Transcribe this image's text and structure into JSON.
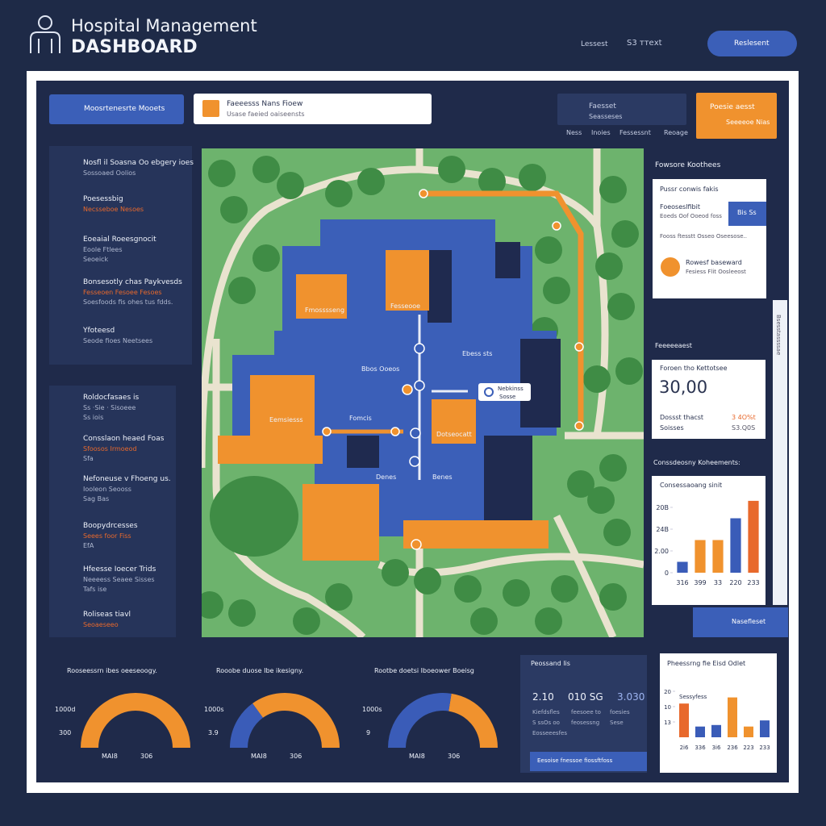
{
  "header": {
    "title": "Hospital Management",
    "subtitle": "DASHBOARD",
    "links": [
      "Lessest",
      "S3 ттеxt"
    ],
    "button": "Reslesent"
  },
  "toolbar": {
    "search": "Moosrtenesrte Mooets",
    "dropdown": {
      "title": "Faeeesss Nans Fioew",
      "sub": "Usase faeied oaiseensts"
    },
    "card": {
      "title": "Faesset",
      "sub": "Seasseses"
    },
    "tabs": [
      "Ness",
      "Inoies",
      "Fessessnt",
      "Reoage"
    ],
    "alert": {
      "title": "Poesie aesst",
      "sub": "Seeeeoe Nias"
    }
  },
  "left_top": [
    {
      "title": "Nosfl il Soasna Oo ebgery ioes",
      "lines": [
        "Sossoaed Oolios"
      ]
    },
    {
      "title": "Poesessbig",
      "lines": [
        "Necsseboe  Nesoes"
      ]
    },
    {
      "title": "Eoeaial Roeesgnocit",
      "lines": [
        "Eoole Ftlees",
        "Seoeick"
      ]
    },
    {
      "title": "Bonsesotly chas Paykvesds",
      "lines": [
        "Fesseoen Fesoee  Fesoes",
        "Soesfoods fis ohes  tus fdds."
      ]
    },
    {
      "title": "Yfoteesd",
      "lines": [
        "Seode fioes  Neetsees"
      ]
    }
  ],
  "left_bottom": [
    {
      "title": "Roldocfasaes is",
      "lines": [
        "Ss ·Sie · Sisoeee",
        "Ss iois"
      ]
    },
    {
      "title": "Consslaon heaed Foas",
      "lines": [
        "Sfoosos Irmoeod",
        "Sfa"
      ]
    },
    {
      "title": "Nefoneuse v Fhoeng us.",
      "lines": [
        "Iooleon Seooss",
        "Sag Bas"
      ]
    },
    {
      "title": "Boopydrcesses",
      "lines": [
        "Seees foor Fiss",
        "EfA"
      ]
    },
    {
      "title": "Hfeesse Ioecer Trids",
      "lines": [
        "Neeeess Seaee Sisses",
        "Tafs ise"
      ]
    },
    {
      "title": "Roliseas tiavl",
      "lines": [
        "Seoaeseeo"
      ]
    }
  ],
  "map": {
    "labels": [
      "Fmosssseng",
      "Fesseooe",
      "Bbos Ooeos",
      "Ebess sts",
      "Eemsiesss",
      "Fomcis",
      "Dotseocatt",
      "Denes",
      "Benes"
    ],
    "popup": {
      "title": "Nebkinss",
      "sub": "Sosse"
    }
  },
  "right_top": {
    "title": "Fowsore Koothees",
    "card_title": "Pussr conwis fakis",
    "row_title": "Foeoseslfibit",
    "row_sub": "Eoeds Oof Ooeod foss",
    "row_button": "Bis  Ss",
    "line": "Fooss ftesstt Osseo Oseesose..",
    "item_title": "Rowesf baseward",
    "item_sub": "Fesiess Flit Oosleeost"
  },
  "right_mid": {
    "title": "Feeeeeaest",
    "card_title": "Foroen tho Kettotsee",
    "big": "30,00",
    "rows": [
      [
        "Dossst thacst",
        "3 4O%t"
      ],
      [
        "Soisses",
        "S3.Q0S"
      ]
    ],
    "section": "Conssdeosny Koheements:",
    "button": "Nasefleset",
    "side": "Bsesstassssae"
  },
  "charts": [
    {
      "type": "bar",
      "title": "Consessaoang sinit",
      "categories": [
        "316",
        "399",
        "33",
        "220",
        "233"
      ],
      "values": [
        0.5,
        1.5,
        1.5,
        2.5,
        3.3
      ],
      "colors": [
        "#3a5cb8",
        "#f0922e",
        "#f0922e",
        "#3a5cb8",
        "#e8692c"
      ],
      "ylim": [
        0,
        3.5
      ],
      "yticks": [
        {
          "value": 0,
          "label": "0"
        },
        {
          "value": 1,
          "label": "2.00"
        },
        {
          "value": 2,
          "label": "24B"
        },
        {
          "value": 3,
          "label": "20B"
        }
      ]
    },
    {
      "type": "bar",
      "title": "Pheessrng fie Eisd Odlet",
      "subtitle": "Sessyfess",
      "categories": [
        "2i6",
        "336",
        "3i6",
        "236",
        "223",
        "233"
      ],
      "values": [
        2.2,
        0.7,
        0.8,
        2.6,
        0.7,
        1.1
      ],
      "colors": [
        "#e8692c",
        "#3a5cb8",
        "#3a5cb8",
        "#f0922e",
        "#f0922e",
        "#3a5cb8"
      ],
      "ylim": [
        0,
        3.3
      ],
      "yticks": [
        {
          "value": 1,
          "label": "13"
        },
        {
          "value": 2,
          "label": "10"
        },
        {
          "value": 3,
          "label": "20"
        }
      ]
    }
  ],
  "gauges": [
    {
      "title": "Rooseessrn ibes oeeseoogy.",
      "value": 100,
      "color": "#f0922e",
      "rest": "#f0922e",
      "left": [
        "1000d",
        "300"
      ],
      "bottom": [
        "MAI8",
        "306"
      ]
    },
    {
      "title": "Rooobe duose Ibe ikesigny.",
      "value": 30,
      "color": "#3a5cb8",
      "rest": "#f0922e",
      "left": [
        "1000s",
        "3.9"
      ],
      "bottom": [
        "MAI8",
        "306"
      ]
    },
    {
      "title": "Rootbe doetsi Iboeower Boeisg",
      "value": 55,
      "color": "#3a5cb8",
      "rest": "#f0922e",
      "left": [
        "1000s",
        "9"
      ],
      "bottom": [
        "MAI8",
        "306"
      ]
    }
  ],
  "summary": {
    "title": "Peossand lis",
    "numbers": [
      "2.10",
      "010 SG",
      "3.030"
    ],
    "rows": [
      [
        "Kiefdsfles",
        "feesoee to",
        "foesies"
      ],
      [
        "S ssOs oo",
        "feosessng",
        "Sese"
      ],
      [
        "Eosseeesfes"
      ]
    ],
    "button": "Eesoise fnessoe fiossftfoss"
  }
}
